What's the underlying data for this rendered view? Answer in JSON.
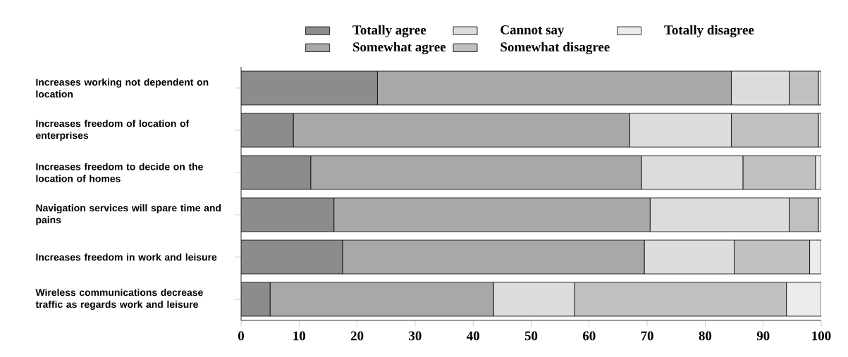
{
  "chart_data": {
    "type": "bar",
    "orientation": "horizontal",
    "stacked": true,
    "categories": [
      "Increases working not dependent on location",
      "Increases freedom  of location of enterprises",
      "Increases freedom  to decide on the location of homes",
      "Navigation services will spare time and pains",
      "Increases freedom  in work and leisure",
      "Wireless communications decrease traffic as regards work and leisure"
    ],
    "series": [
      {
        "name": "Totally agree",
        "color": "#8c8c8c",
        "values": [
          23.5,
          9,
          12,
          16,
          17.5,
          5
        ]
      },
      {
        "name": "Somewhat agree",
        "color": "#a8a8a8",
        "values": [
          61,
          58,
          57,
          54.5,
          52,
          38.5
        ]
      },
      {
        "name": "Cannot say",
        "color": "#dcdcdc",
        "values": [
          10,
          17.5,
          17.5,
          24,
          15.5,
          14
        ]
      },
      {
        "name": "Somewhat disagree",
        "color": "#c0c0c0",
        "values": [
          5,
          15,
          12.5,
          5,
          13,
          36.5
        ]
      },
      {
        "name": "Totally disagree",
        "color": "#ececec",
        "values": [
          0.5,
          0.5,
          1,
          0.5,
          2,
          6
        ]
      }
    ],
    "xlim": [
      0,
      100
    ],
    "xticks": [
      0,
      10,
      20,
      30,
      40,
      50,
      60,
      70,
      80,
      90,
      100
    ],
    "legend": "top",
    "grid": false
  }
}
